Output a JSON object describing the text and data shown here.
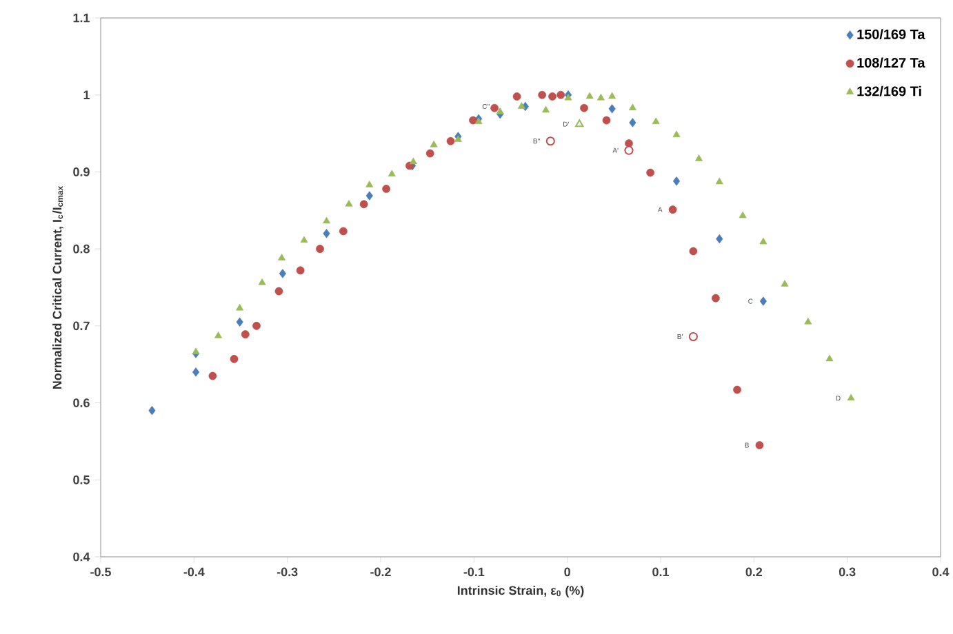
{
  "chart_data": {
    "type": "scatter",
    "xlabel": "Intrinsic Strain, ε$_{0}$ (%)",
    "ylabel": "Normalized Critical Current, I$_{c}$/I$_{cmax}$",
    "xlim": [
      -0.5,
      0.4
    ],
    "ylim": [
      0.4,
      1.1
    ],
    "xticks": [
      -0.5,
      -0.4,
      -0.3,
      -0.2,
      -0.1,
      0,
      0.1,
      0.2,
      0.3,
      0.4
    ],
    "yticks": [
      0.4,
      0.5,
      0.6,
      0.7,
      0.8,
      0.9,
      1,
      1.1
    ],
    "grid": false,
    "legend": "top right",
    "series": [
      {
        "name": "150/169 Ta",
        "color": "#4a7ebb",
        "marker": "diamond",
        "x": [
          -0.445,
          -0.398,
          -0.398,
          -0.351,
          -0.305,
          -0.258,
          -0.212,
          -0.166,
          -0.117,
          -0.095,
          -0.072,
          -0.045,
          0.001,
          0.048,
          0.07,
          0.117,
          0.163,
          0.21
        ],
        "values": [
          0.59,
          0.64,
          0.664,
          0.705,
          0.768,
          0.82,
          0.869,
          0.908,
          0.946,
          0.969,
          0.975,
          0.985,
          1.0,
          0.982,
          0.964,
          0.888,
          0.813,
          0.732
        ]
      },
      {
        "name": "108/127 Ta",
        "color": "#c0504d",
        "marker": "circle",
        "x": [
          -0.38,
          -0.357,
          -0.345,
          -0.333,
          -0.309,
          -0.286,
          -0.265,
          -0.24,
          -0.218,
          -0.194,
          -0.169,
          -0.147,
          -0.125,
          -0.101,
          -0.078,
          -0.054,
          -0.027,
          -0.016,
          -0.007,
          0.018,
          0.042,
          0.066,
          0.089,
          0.113,
          0.135,
          0.159,
          0.182,
          0.206
        ],
        "values": [
          0.635,
          0.657,
          0.689,
          0.7,
          0.745,
          0.772,
          0.8,
          0.823,
          0.858,
          0.878,
          0.908,
          0.924,
          0.94,
          0.967,
          0.983,
          0.998,
          1.0,
          0.998,
          1.0,
          0.983,
          0.967,
          0.937,
          0.899,
          0.851,
          0.797,
          0.736,
          0.617,
          0.545
        ]
      },
      {
        "name": "132/169 Ti",
        "color": "#9bbb59",
        "marker": "triangle",
        "x": [
          -0.398,
          -0.374,
          -0.351,
          -0.327,
          -0.306,
          -0.282,
          -0.258,
          -0.234,
          -0.212,
          -0.188,
          -0.165,
          -0.143,
          -0.117,
          -0.095,
          -0.072,
          -0.049,
          -0.023,
          0.001,
          0.024,
          0.036,
          0.048,
          0.07,
          0.095,
          0.117,
          0.141,
          0.163,
          0.188,
          0.21,
          0.233,
          0.258,
          0.281,
          0.304
        ],
        "values": [
          0.666,
          0.687,
          0.723,
          0.756,
          0.788,
          0.811,
          0.836,
          0.858,
          0.883,
          0.897,
          0.913,
          0.935,
          0.942,
          0.965,
          0.978,
          0.985,
          0.98,
          0.996,
          0.998,
          0.996,
          0.998,
          0.983,
          0.965,
          0.948,
          0.917,
          0.887,
          0.843,
          0.809,
          0.754,
          0.705,
          0.657,
          0.606
        ]
      },
      {
        "color": "#c0504d",
        "marker": "circle",
        "x": [
          -0.018,
          0.066,
          0.135
        ],
        "values": [
          0.94,
          0.928,
          0.686
        ]
      },
      {
        "color": "#9bbb59",
        "marker": "triangle",
        "x": [
          0.013
        ],
        "values": [
          0.962
        ]
      }
    ],
    "annotations": [
      {
        "text": "C''",
        "x": -0.072,
        "y": 0.985
      },
      {
        "text": "B''",
        "x": -0.018,
        "y": 0.94
      },
      {
        "text": "D'",
        "x": 0.013,
        "y": 0.962
      },
      {
        "text": "A'",
        "x": 0.066,
        "y": 0.928
      },
      {
        "text": "A",
        "x": 0.113,
        "y": 0.851
      },
      {
        "text": "B'",
        "x": 0.135,
        "y": 0.686
      },
      {
        "text": "C",
        "x": 0.21,
        "y": 0.732
      },
      {
        "text": "B",
        "x": 0.206,
        "y": 0.545
      },
      {
        "text": "D",
        "x": 0.304,
        "y": 0.606
      }
    ]
  }
}
